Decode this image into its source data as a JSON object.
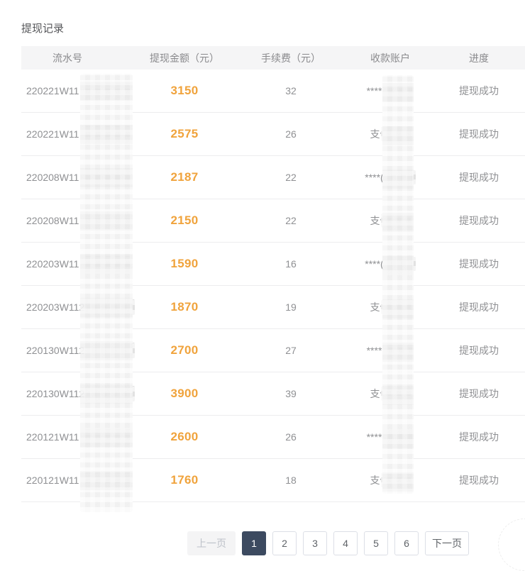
{
  "page": {
    "title": "提现记录"
  },
  "table": {
    "columns": [
      "流水号",
      "提现金额（元）",
      "手续费（元）",
      "收款账户",
      "进度"
    ],
    "rows": [
      {
        "serial": "220221W11",
        "amount": "3150",
        "fee": "32",
        "account": "****",
        "status": "提现成功"
      },
      {
        "serial": "220221W11",
        "amount": "2575",
        "fee": "26",
        "account": "支付",
        "status": "提现成功"
      },
      {
        "serial": "220208W11",
        "amount": "2187",
        "fee": "22",
        "account": "****(",
        "status": "提现成功"
      },
      {
        "serial": "220208W11",
        "amount": "2150",
        "fee": "22",
        "account": "支付",
        "status": "提现成功"
      },
      {
        "serial": "220203W11",
        "amount": "1590",
        "fee": "16",
        "account": "****(",
        "status": "提现成功"
      },
      {
        "serial": "220203W112",
        "amount": "1870",
        "fee": "19",
        "account": "支付",
        "status": "提现成功"
      },
      {
        "serial": "220130W112",
        "amount": "2700",
        "fee": "27",
        "account": "****",
        "status": "提现成功"
      },
      {
        "serial": "220130W112",
        "amount": "3900",
        "fee": "39",
        "account": "支付",
        "status": "提现成功"
      },
      {
        "serial": "220121W11",
        "amount": "2600",
        "fee": "26",
        "account": "****",
        "status": "提现成功"
      },
      {
        "serial": "220121W11",
        "amount": "1760",
        "fee": "18",
        "account": "支付",
        "status": "提现成功"
      }
    ]
  },
  "pagination": {
    "prev_label": "上一页",
    "next_label": "下一页",
    "pages": [
      "1",
      "2",
      "3",
      "4",
      "5",
      "6"
    ],
    "active_page": "1"
  },
  "colors": {
    "amount_orange": "#f0a33c",
    "active_page_bg": "#3c4a60",
    "header_bg": "#f5f5f6",
    "row_text": "#8f9093",
    "divider": "#ededee",
    "prev_disabled_bg": "#f4f4f5",
    "prev_disabled_text": "#bdc1c9",
    "page_button_border": "#dcdfe6",
    "page_button_text": "#5f6368"
  }
}
